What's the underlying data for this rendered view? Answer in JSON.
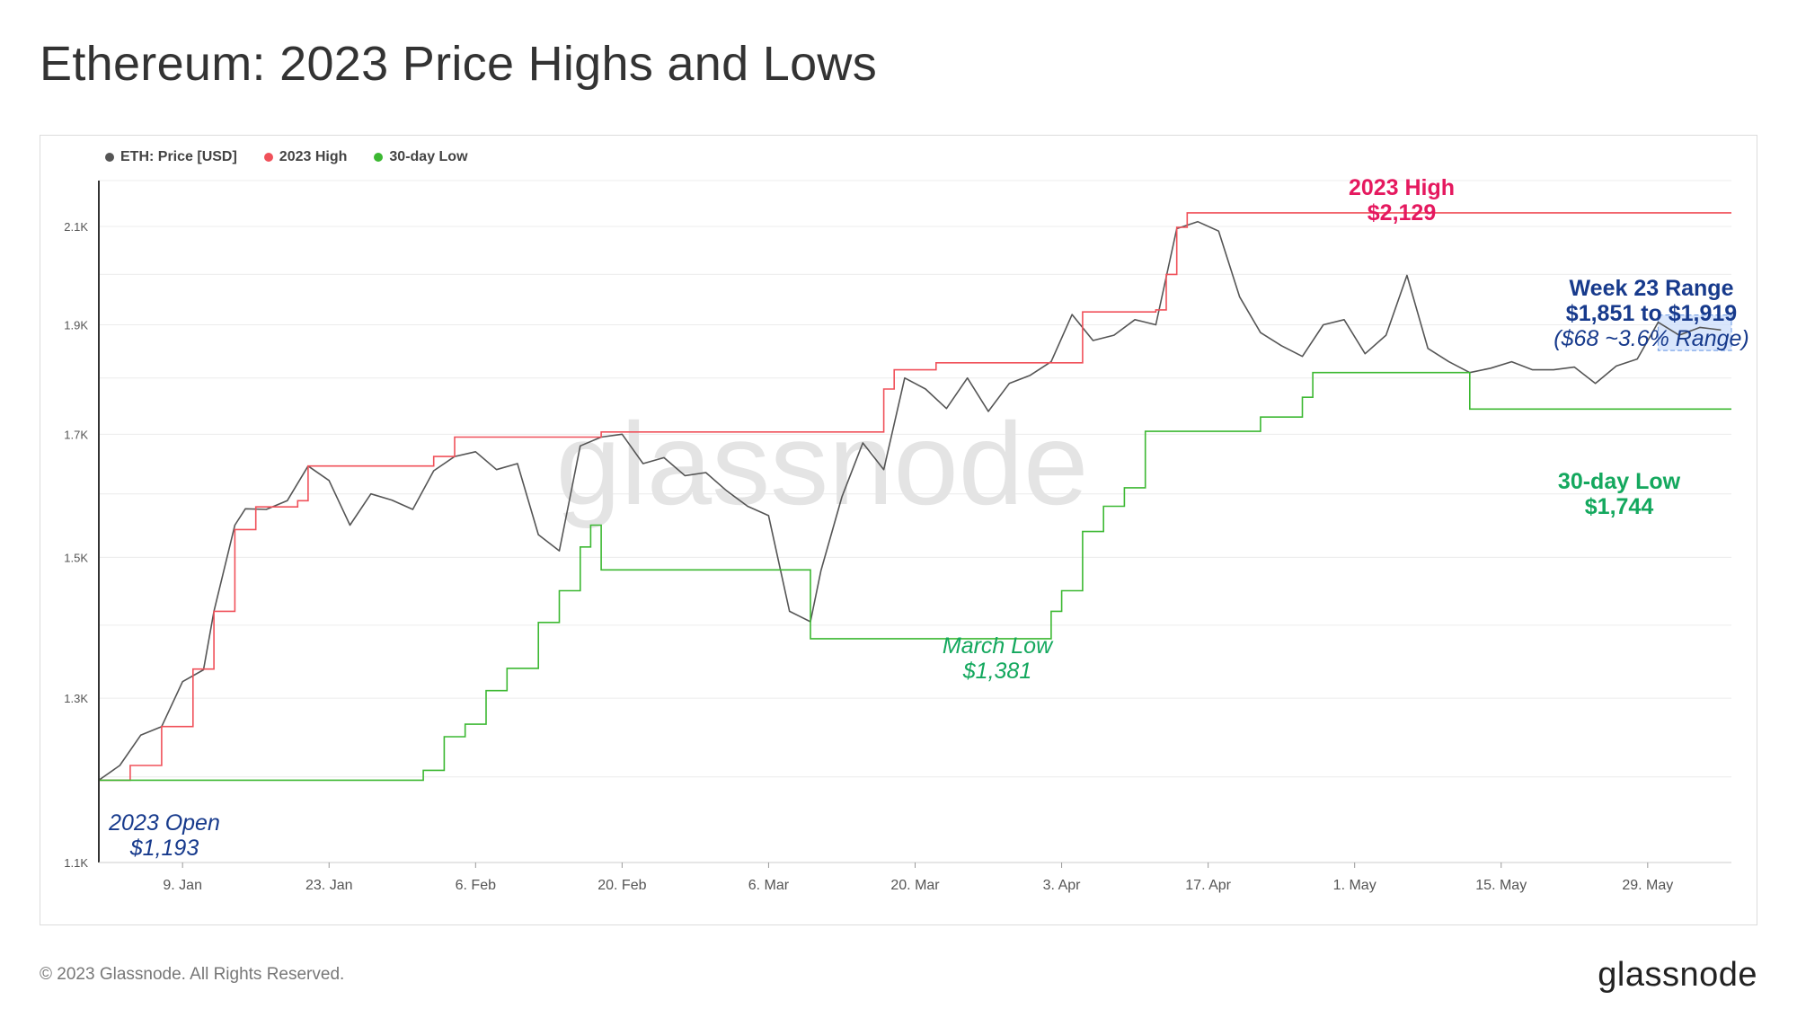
{
  "title": "Ethereum: 2023 Price Highs and Lows",
  "footer": "© 2023 Glassnode. All Rights Reserved.",
  "brand": "glassnode",
  "watermark": "glassnode",
  "legend": [
    {
      "label": "ETH: Price [USD]",
      "color": "#555555"
    },
    {
      "label": "2023 High",
      "color": "#f0515a"
    },
    {
      "label": "30-day Low",
      "color": "#3cb832"
    }
  ],
  "annotations": {
    "high_title": "2023 High",
    "high_value": "$2,129",
    "week_title": "Week 23 Range",
    "week_values": "$1,851 to $1,919",
    "week_pct": "($68 ~3.6% Range)",
    "low30_title": "30-day Low",
    "low30_value": "$1,744",
    "march_title": "March Low",
    "march_value": "$1,381",
    "open_title": "2023 Open",
    "open_value": "$1,193"
  },
  "colors": {
    "price": "#555555",
    "high": "#f0515a",
    "low": "#3cb832",
    "high_annotation": "#e5195f",
    "low_annotation": "#14a85e",
    "open_annotation": "#173a8c",
    "range_box": "#7fa7e8"
  },
  "chart_data": {
    "type": "line",
    "xlabel": "",
    "ylabel": "",
    "y_scale": "log",
    "ylim": [
      1100,
      2200
    ],
    "y_ticks": [
      1100,
      1300,
      1500,
      1700,
      1900,
      2100
    ],
    "y_tick_labels": [
      "1.1K",
      "1.3K",
      "1.5K",
      "1.7K",
      "1.9K",
      "2.1K"
    ],
    "x_ticks": [
      "2023-01-09",
      "2023-01-23",
      "2023-02-06",
      "2023-02-20",
      "2023-03-06",
      "2023-03-20",
      "2023-04-03",
      "2023-04-17",
      "2023-05-01",
      "2023-05-15",
      "2023-05-29"
    ],
    "x_tick_labels": [
      "9. Jan",
      "23. Jan",
      "6. Feb",
      "20. Feb",
      "6. Mar",
      "20. Mar",
      "3. Apr",
      "17. Apr",
      "1. May",
      "15. May",
      "29. May"
    ],
    "xlim": [
      "2023-01-01",
      "2023-06-06"
    ],
    "grid": true,
    "legend_position": "top-left",
    "series": [
      {
        "name": "ETH: Price [USD]",
        "x": [
          "2023-01-01",
          "2023-01-03",
          "2023-01-05",
          "2023-01-07",
          "2023-01-09",
          "2023-01-11",
          "2023-01-12",
          "2023-01-14",
          "2023-01-15",
          "2023-01-17",
          "2023-01-19",
          "2023-01-21",
          "2023-01-23",
          "2023-01-25",
          "2023-01-27",
          "2023-01-29",
          "2023-01-31",
          "2023-02-02",
          "2023-02-04",
          "2023-02-06",
          "2023-02-08",
          "2023-02-10",
          "2023-02-12",
          "2023-02-14",
          "2023-02-16",
          "2023-02-18",
          "2023-02-20",
          "2023-02-22",
          "2023-02-24",
          "2023-02-26",
          "2023-02-28",
          "2023-03-02",
          "2023-03-04",
          "2023-03-06",
          "2023-03-08",
          "2023-03-10",
          "2023-03-11",
          "2023-03-13",
          "2023-03-15",
          "2023-03-17",
          "2023-03-19",
          "2023-03-21",
          "2023-03-23",
          "2023-03-25",
          "2023-03-27",
          "2023-03-29",
          "2023-03-31",
          "2023-04-02",
          "2023-04-04",
          "2023-04-06",
          "2023-04-08",
          "2023-04-10",
          "2023-04-12",
          "2023-04-14",
          "2023-04-16",
          "2023-04-18",
          "2023-04-20",
          "2023-04-22",
          "2023-04-24",
          "2023-04-26",
          "2023-04-28",
          "2023-04-30",
          "2023-05-02",
          "2023-05-04",
          "2023-05-06",
          "2023-05-08",
          "2023-05-10",
          "2023-05-12",
          "2023-05-14",
          "2023-05-16",
          "2023-05-18",
          "2023-05-20",
          "2023-05-22",
          "2023-05-24",
          "2023-05-26",
          "2023-05-28",
          "2023-05-30",
          "2023-06-01",
          "2023-06-03",
          "2023-06-05"
        ],
        "values": [
          1196,
          1214,
          1252,
          1263,
          1322,
          1338,
          1420,
          1550,
          1576,
          1575,
          1589,
          1646,
          1622,
          1550,
          1600,
          1590,
          1575,
          1638,
          1662,
          1670,
          1640,
          1650,
          1535,
          1510,
          1680,
          1695,
          1700,
          1650,
          1660,
          1630,
          1635,
          1605,
          1580,
          1565,
          1420,
          1405,
          1480,
          1595,
          1685,
          1640,
          1800,
          1780,
          1745,
          1800,
          1740,
          1790,
          1805,
          1830,
          1920,
          1870,
          1880,
          1910,
          1900,
          2095,
          2110,
          2090,
          1955,
          1885,
          1860,
          1840,
          1900,
          1910,
          1845,
          1880,
          1998,
          1855,
          1830,
          1810,
          1818,
          1830,
          1815,
          1815,
          1820,
          1790,
          1822,
          1835,
          1905,
          1880,
          1895,
          1890
        ]
      },
      {
        "name": "2023 High",
        "x": [
          "2023-01-01",
          "2023-01-04",
          "2023-01-07",
          "2023-01-10",
          "2023-01-12",
          "2023-01-14",
          "2023-01-16",
          "2023-01-20",
          "2023-01-21",
          "2023-02-02",
          "2023-02-04",
          "2023-02-18",
          "2023-03-16",
          "2023-03-17",
          "2023-03-18",
          "2023-03-22",
          "2023-03-31",
          "2023-04-05",
          "2023-04-12",
          "2023-04-13",
          "2023-04-14",
          "2023-04-15",
          "2023-06-06"
        ],
        "values": [
          1196,
          1214,
          1263,
          1339,
          1420,
          1543,
          1579,
          1589,
          1646,
          1662,
          1695,
          1704,
          1704,
          1780,
          1815,
          1828,
          1828,
          1925,
          1929,
          2000,
          2098,
          2129,
          2129
        ]
      },
      {
        "name": "30-day Low",
        "x": [
          "2023-01-01",
          "2023-02-01",
          "2023-02-03",
          "2023-02-05",
          "2023-02-07",
          "2023-02-09",
          "2023-02-12",
          "2023-02-14",
          "2023-02-16",
          "2023-02-17",
          "2023-02-18",
          "2023-03-10",
          "2023-04-01",
          "2023-04-02",
          "2023-04-03",
          "2023-04-05",
          "2023-04-07",
          "2023-04-09",
          "2023-04-11",
          "2023-04-21",
          "2023-04-22",
          "2023-04-26",
          "2023-04-27",
          "2023-05-11",
          "2023-05-12",
          "2023-06-06"
        ],
        "values": [
          1196,
          1208,
          1250,
          1266,
          1310,
          1340,
          1404,
          1450,
          1516,
          1550,
          1481,
          1381,
          1381,
          1420,
          1450,
          1540,
          1580,
          1610,
          1705,
          1705,
          1730,
          1765,
          1810,
          1810,
          1744,
          1744
        ]
      }
    ]
  }
}
